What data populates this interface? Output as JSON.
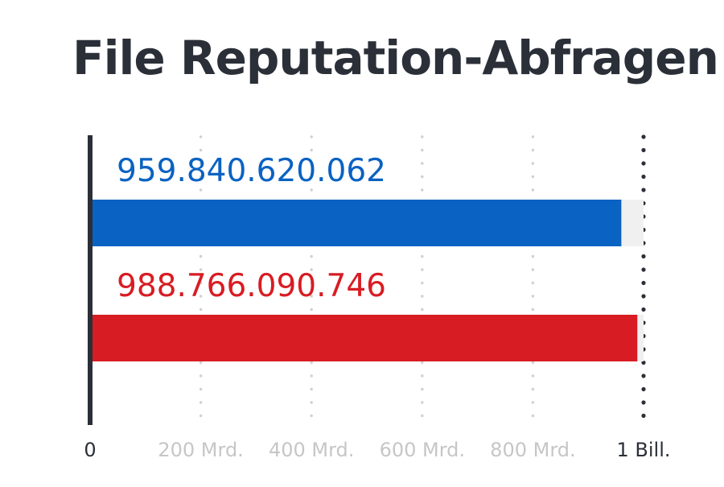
{
  "chart_data": {
    "type": "bar",
    "orientation": "horizontal",
    "title": "File Reputation-Abfragen",
    "xlabel": "",
    "ylabel": "",
    "xlim": [
      0,
      1000000000000
    ],
    "grid": true,
    "x_ticks": [
      {
        "value": 0,
        "label": "0"
      },
      {
        "value": 200000000000,
        "label": "200 Mrd."
      },
      {
        "value": 400000000000,
        "label": "400 Mrd."
      },
      {
        "value": 600000000000,
        "label": "600 Mrd."
      },
      {
        "value": 800000000000,
        "label": "800 Mrd."
      },
      {
        "value": 1000000000000,
        "label": "1 Bill."
      }
    ],
    "bars": [
      {
        "value": 959840620062,
        "data_label": "959.840.620.062",
        "color": "#0a62c2"
      },
      {
        "value": 988766090746,
        "data_label": "988.766.090.746",
        "color": "#d81c23"
      }
    ]
  },
  "colors": {
    "title": "#2b2f38",
    "axis": "#2b2f38",
    "grid_minor": "#d0d0d0",
    "grid_major": "#2b2f38",
    "tick_label_strong": "#2b2f38",
    "tick_label_muted": "#c6c6c6",
    "bar_track": "#f0f0f0"
  }
}
